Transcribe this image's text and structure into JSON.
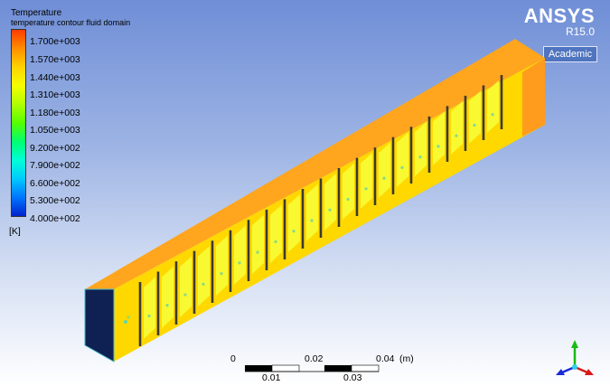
{
  "legend": {
    "title": "Temperature",
    "subtitle": "temperature contour fluid domain",
    "unit": "[K]",
    "ticks": [
      "1.700e+003",
      "1.570e+003",
      "1.440e+003",
      "1.310e+003",
      "1.180e+003",
      "1.050e+003",
      "9.200e+002",
      "7.900e+002",
      "6.600e+002",
      "5.300e+002",
      "4.000e+002"
    ],
    "bands": [
      "#ff3b00",
      "#ff8f00",
      "#ffd200",
      "#f4ff00",
      "#b2ff00",
      "#56ff00",
      "#00ff72",
      "#00ffd5",
      "#00c9ff",
      "#0077ff",
      "#0022cc"
    ]
  },
  "logo": {
    "name": "ANSYS",
    "version": "R15.0",
    "edition": "Academic"
  },
  "scale": {
    "top_labels": [
      "0",
      "0.02",
      "0.04"
    ],
    "bottom_labels": [
      "0.01",
      "0.03"
    ],
    "unit": "(m)"
  },
  "colors": {
    "duct_top": "#ffa51e",
    "duct_side": "#ffd800",
    "duct_outlet": "#ff9c1d",
    "inlet_face": "#0f2152",
    "fin": "#3a3a32",
    "core": "#f7ff3a",
    "triad_y": "#18b918",
    "triad_x": "#d81a1a",
    "triad_z": "#1a2bd8"
  }
}
